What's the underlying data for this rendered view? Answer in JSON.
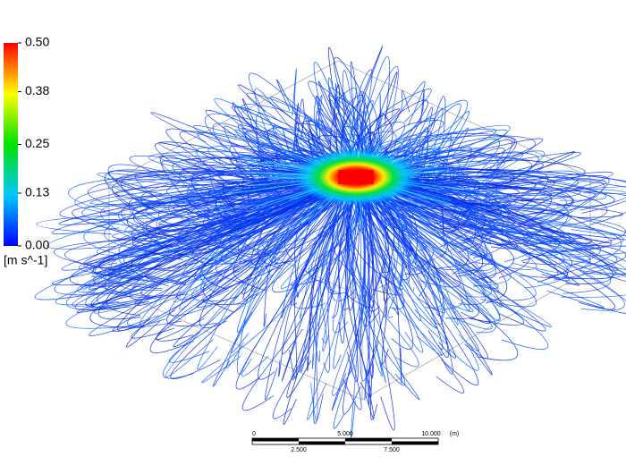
{
  "legend": {
    "ticks": [
      {
        "value": 0,
        "label": "0.00"
      },
      {
        "value": 0.13,
        "label": "0.13"
      },
      {
        "value": 0.25,
        "label": "0.25"
      },
      {
        "value": 0.38,
        "label": "0.38"
      },
      {
        "value": 0.5,
        "label": "0.50"
      }
    ],
    "unit": "[m s^-1]"
  },
  "scale_bar": {
    "top_labels": [
      "0",
      "5.000",
      "10.000",
      "(m)"
    ],
    "bottom_labels": [
      "2.500",
      "7.500"
    ]
  }
}
